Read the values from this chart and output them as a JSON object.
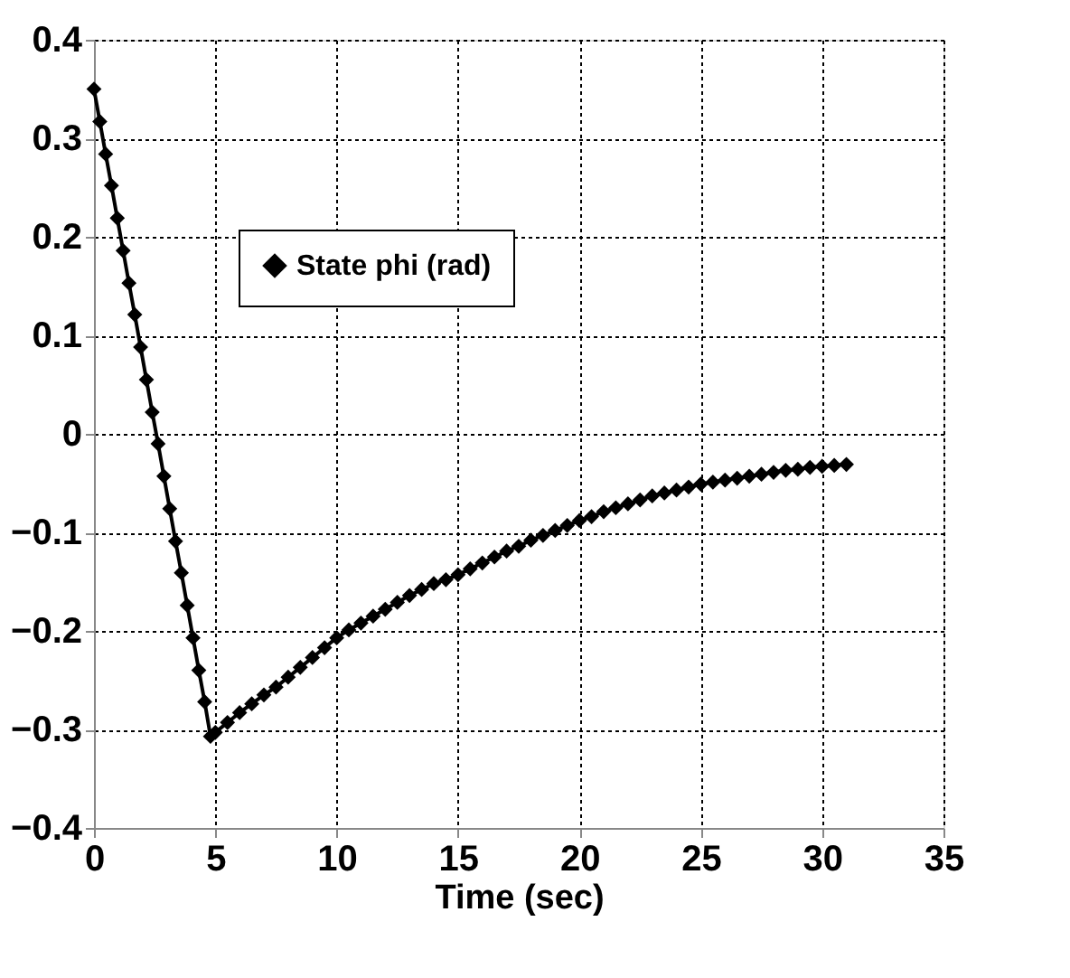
{
  "chart_data": {
    "type": "line",
    "xlabel": "Time (sec)",
    "xlim": [
      0,
      35
    ],
    "xticks": [
      0,
      5,
      10,
      15,
      20,
      25,
      30,
      35
    ],
    "ylim": [
      -0.4,
      0.4
    ],
    "yticks": [
      -0.4,
      -0.3,
      -0.2,
      -0.1,
      0,
      0.1,
      0.2,
      0.3,
      0.4
    ],
    "grid": true,
    "legend": "top",
    "marker": "diamond",
    "line_style": "solid",
    "series": [
      {
        "name": "State phi (rad)",
        "color": "#000000",
        "x": [
          0,
          0.24,
          0.48,
          0.72,
          0.96,
          1.2,
          1.44,
          1.68,
          1.92,
          2.16,
          2.4,
          2.64,
          2.88,
          3.12,
          3.36,
          3.6,
          3.84,
          4.08,
          4.32,
          4.56,
          4.8,
          5,
          5.5,
          6,
          6.5,
          7,
          7.5,
          8,
          8.5,
          9,
          9.5,
          10,
          10.5,
          11,
          11.5,
          12,
          12.5,
          13,
          13.5,
          14,
          14.5,
          15,
          15.5,
          16,
          16.5,
          17,
          17.5,
          18,
          18.5,
          19,
          19.5,
          20,
          20.5,
          21,
          21.5,
          22,
          22.5,
          23,
          23.5,
          24,
          24.5,
          25,
          25.5,
          26,
          26.5,
          27,
          27.5,
          28,
          28.5,
          29,
          29.5,
          30,
          30.5,
          31
        ],
        "values": [
          0.35,
          0.317,
          0.284,
          0.252,
          0.219,
          0.186,
          0.153,
          0.121,
          0.088,
          0.055,
          0.022,
          -0.01,
          -0.043,
          -0.076,
          -0.109,
          -0.141,
          -0.174,
          -0.207,
          -0.24,
          -0.272,
          -0.307,
          -0.303,
          -0.293,
          -0.283,
          -0.274,
          -0.265,
          -0.257,
          -0.247,
          -0.237,
          -0.227,
          -0.217,
          -0.207,
          -0.199,
          -0.192,
          -0.185,
          -0.178,
          -0.171,
          -0.164,
          -0.158,
          -0.152,
          -0.148,
          -0.143,
          -0.137,
          -0.131,
          -0.125,
          -0.119,
          -0.114,
          -0.108,
          -0.103,
          -0.098,
          -0.093,
          -0.088,
          -0.084,
          -0.079,
          -0.075,
          -0.071,
          -0.067,
          -0.063,
          -0.06,
          -0.057,
          -0.054,
          -0.051,
          -0.049,
          -0.047,
          -0.045,
          -0.043,
          -0.041,
          -0.039,
          -0.037,
          -0.036,
          -0.034,
          -0.033,
          -0.032,
          -0.031
        ]
      }
    ]
  }
}
